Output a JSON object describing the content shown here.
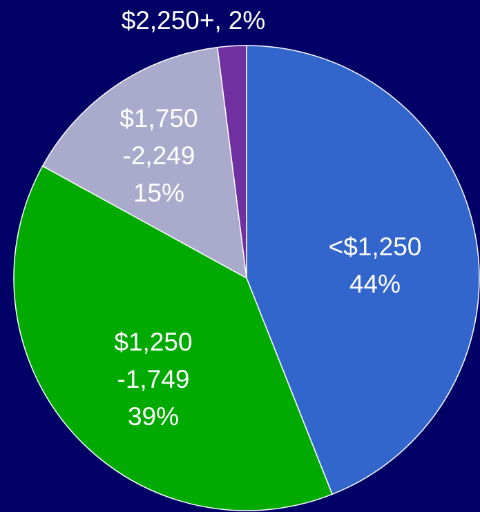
{
  "chart_data": {
    "type": "pie",
    "categories": [
      [
        "<$1,250"
      ],
      [
        "$1,250",
        "-1,749"
      ],
      [
        "$1,750",
        "-2,249"
      ],
      [
        "$2,250+,"
      ]
    ],
    "values": [
      44,
      39,
      15,
      2
    ],
    "value_labels": [
      "44%",
      "39%",
      "15%",
      "2%"
    ],
    "colors": [
      "#3366cc",
      "#00aa00",
      "#aaaacc",
      "#7030a0"
    ]
  }
}
